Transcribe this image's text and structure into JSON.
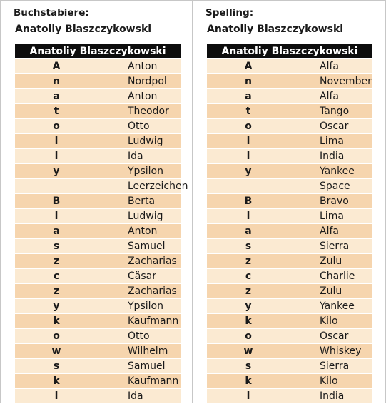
{
  "left": {
    "heading": "Buchstabiere:",
    "name": "Anatoliy Blaszczykowski",
    "table_header": "Anatoliy Blaszczykowski",
    "rows": [
      {
        "letter": "A",
        "word": "Anton"
      },
      {
        "letter": "n",
        "word": "Nordpol"
      },
      {
        "letter": "a",
        "word": "Anton"
      },
      {
        "letter": "t",
        "word": "Theodor"
      },
      {
        "letter": "o",
        "word": "Otto"
      },
      {
        "letter": "l",
        "word": "Ludwig"
      },
      {
        "letter": "i",
        "word": "Ida"
      },
      {
        "letter": "y",
        "word": "Ypsilon"
      },
      {
        "letter": "",
        "word": "Leerzeichen"
      },
      {
        "letter": "B",
        "word": "Berta"
      },
      {
        "letter": "l",
        "word": "Ludwig"
      },
      {
        "letter": "a",
        "word": "Anton"
      },
      {
        "letter": "s",
        "word": "Samuel"
      },
      {
        "letter": "z",
        "word": "Zacharias"
      },
      {
        "letter": "c",
        "word": "Cäsar"
      },
      {
        "letter": "z",
        "word": "Zacharias"
      },
      {
        "letter": "y",
        "word": "Ypsilon"
      },
      {
        "letter": "k",
        "word": "Kaufmann"
      },
      {
        "letter": "o",
        "word": "Otto"
      },
      {
        "letter": "w",
        "word": "Wilhelm"
      },
      {
        "letter": "s",
        "word": "Samuel"
      },
      {
        "letter": "k",
        "word": "Kaufmann"
      },
      {
        "letter": "i",
        "word": "Ida"
      }
    ]
  },
  "right": {
    "heading": "Spelling:",
    "name": "Anatoliy Blaszczykowski",
    "table_header": "Anatoliy Blaszczykowski",
    "rows": [
      {
        "letter": "A",
        "word": "Alfa"
      },
      {
        "letter": "n",
        "word": "November"
      },
      {
        "letter": "a",
        "word": "Alfa"
      },
      {
        "letter": "t",
        "word": "Tango"
      },
      {
        "letter": "o",
        "word": "Oscar"
      },
      {
        "letter": "l",
        "word": "Lima"
      },
      {
        "letter": "i",
        "word": "India"
      },
      {
        "letter": "y",
        "word": "Yankee"
      },
      {
        "letter": "",
        "word": "Space"
      },
      {
        "letter": "B",
        "word": "Bravo"
      },
      {
        "letter": "l",
        "word": "Lima"
      },
      {
        "letter": "a",
        "word": "Alfa"
      },
      {
        "letter": "s",
        "word": "Sierra"
      },
      {
        "letter": "z",
        "word": "Zulu"
      },
      {
        "letter": "c",
        "word": "Charlie"
      },
      {
        "letter": "z",
        "word": "Zulu"
      },
      {
        "letter": "y",
        "word": "Yankee"
      },
      {
        "letter": "k",
        "word": "Kilo"
      },
      {
        "letter": "o",
        "word": "Oscar"
      },
      {
        "letter": "w",
        "word": "Whiskey"
      },
      {
        "letter": "s",
        "word": "Sierra"
      },
      {
        "letter": "k",
        "word": "Kilo"
      },
      {
        "letter": "i",
        "word": "India"
      }
    ]
  },
  "colors": {
    "header_bg": "#0d0d0d",
    "row_light": "#fbead2",
    "row_dark": "#f6d5ae"
  }
}
